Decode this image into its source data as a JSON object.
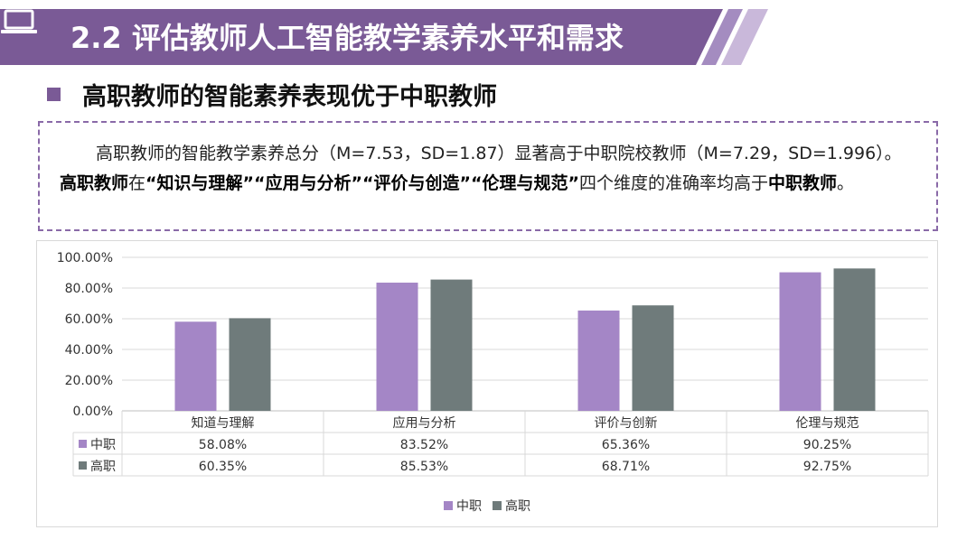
{
  "header": {
    "title": "2.2 评估教师人工智能教学素养水平和需求",
    "icon": "laptop-icon",
    "colors": {
      "banner": "#7a5a96",
      "banner_light": "#a48cc0"
    }
  },
  "subhead": {
    "text": "高职教师的智能素养表现优于中职教师",
    "bullet_color": "#7a5a96"
  },
  "textbox": {
    "p1": "高职教师的智能教学素养总分（M=7.53，SD=1.87）显著高于中职院校教师（M=7.29，SD=1.996）。",
    "p2_bold": "高职教师",
    "p3": "在",
    "p4_bold": "“知识与理解”“应用与分析”“评价与创造”“伦理与规范”",
    "p5": "四个维度的准确率均高于",
    "p6_bold": "中职教师",
    "p7": "。"
  },
  "chart_data": {
    "type": "bar",
    "categories": [
      "知道与理解",
      "应用与分析",
      "评价与创新",
      "伦理与规范"
    ],
    "series": [
      {
        "name": "中职",
        "values": [
          58.08,
          83.52,
          65.36,
          90.25
        ],
        "labels": [
          "58.08%",
          "83.52%",
          "65.36%",
          "90.25%"
        ],
        "color": "#a486c6"
      },
      {
        "name": "高职",
        "values": [
          60.35,
          85.53,
          68.71,
          92.75
        ],
        "labels": [
          "60.35%",
          "85.53%",
          "68.71%",
          "92.75%"
        ],
        "color": "#6f7b7b"
      }
    ],
    "ylim": [
      0,
      100
    ],
    "yticks": [
      "0.00%",
      "20.00%",
      "40.00%",
      "60.00%",
      "80.00%",
      "100.00%"
    ],
    "grid": true,
    "data_table": true,
    "legend_position": "bottom"
  }
}
